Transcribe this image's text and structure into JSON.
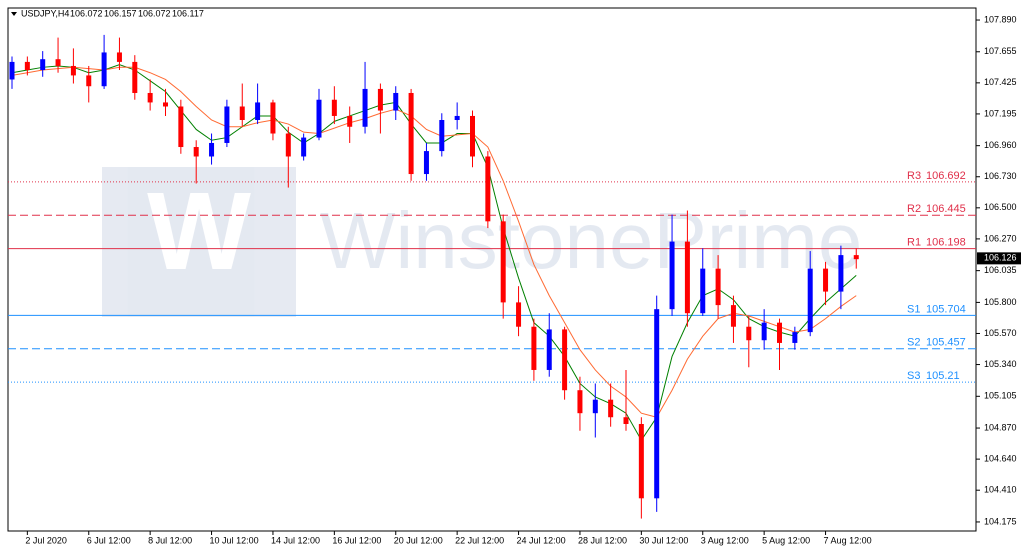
{
  "chart_data": {
    "type": "candlestick",
    "symbol": "USDJPY,H4",
    "header_prices": [
      106.072,
      106.157,
      106.072,
      106.117
    ],
    "watermark": "WinstonePrime",
    "up_color": "#0000ff",
    "down_color": "#ff0000",
    "categories": [
      null,
      "2 Jul 2020",
      null,
      null,
      null,
      "6 Jul 12:00",
      null,
      null,
      null,
      "8 Jul 12:00",
      null,
      null,
      null,
      "10 Jul 12:00",
      null,
      null,
      null,
      "14 Jul 12:00",
      null,
      null,
      null,
      "16 Jul 12:00",
      null,
      null,
      null,
      "20 Jul 12:00",
      null,
      null,
      null,
      "22 Jul 12:00",
      null,
      null,
      null,
      "24 Jul 12:00",
      null,
      null,
      null,
      "28 Jul 12:00",
      null,
      null,
      null,
      "30 Jul 12:00",
      null,
      null,
      null,
      "3 Aug 12:00",
      null,
      null,
      null,
      "5 Aug 12:00",
      null,
      null,
      null,
      "7 Aug 12:00",
      null,
      null
    ],
    "open": [
      107.45,
      107.58,
      107.52,
      107.6,
      107.55,
      107.48,
      107.4,
      107.65,
      107.58,
      107.35,
      107.28,
      107.25,
      106.95,
      106.88,
      106.98,
      107.25,
      107.15,
      107.28,
      107.05,
      106.88,
      107.02,
      107.3,
      107.18,
      107.1,
      107.38,
      107.22,
      107.35,
      106.75,
      106.92,
      107.15,
      107.18,
      106.88,
      106.4,
      105.8,
      105.62,
      105.3,
      105.6,
      105.15,
      104.98,
      105.08,
      104.95,
      104.9,
      104.35,
      105.75,
      106.25,
      105.72,
      106.05,
      105.78,
      105.62,
      105.52,
      105.65,
      105.5,
      105.58,
      106.05,
      105.88,
      106.15
    ],
    "high": [
      107.62,
      107.62,
      107.66,
      107.76,
      107.68,
      107.55,
      107.78,
      107.76,
      107.63,
      107.45,
      107.38,
      107.3,
      107.0,
      107.05,
      107.3,
      107.42,
      107.42,
      107.3,
      107.1,
      107.05,
      107.38,
      107.4,
      107.25,
      107.58,
      107.42,
      107.4,
      107.38,
      106.98,
      107.2,
      107.28,
      107.22,
      106.92,
      106.45,
      105.92,
      105.68,
      105.72,
      105.62,
      105.25,
      105.2,
      105.2,
      105.3,
      104.95,
      105.85,
      106.45,
      106.48,
      106.2,
      106.15,
      105.85,
      105.7,
      105.75,
      105.68,
      105.62,
      106.18,
      106.1,
      106.22,
      106.2
    ],
    "low": [
      107.38,
      107.48,
      107.47,
      107.5,
      107.42,
      107.28,
      107.38,
      107.52,
      107.3,
      107.22,
      107.18,
      106.9,
      106.68,
      106.82,
      106.95,
      107.1,
      107.12,
      107.0,
      106.65,
      106.85,
      107.0,
      107.12,
      106.98,
      107.05,
      107.05,
      107.15,
      106.7,
      106.7,
      106.88,
      107.08,
      106.8,
      106.35,
      105.68,
      105.55,
      105.22,
      105.25,
      105.08,
      104.85,
      104.8,
      104.88,
      104.85,
      104.2,
      104.25,
      105.7,
      105.62,
      105.7,
      105.68,
      105.5,
      105.32,
      105.45,
      105.3,
      105.45,
      105.55,
      105.78,
      105.75,
      106.05
    ],
    "close": [
      107.58,
      107.52,
      107.6,
      107.55,
      107.48,
      107.4,
      107.65,
      107.58,
      107.35,
      107.28,
      107.25,
      106.95,
      106.88,
      106.98,
      107.25,
      107.15,
      107.28,
      107.05,
      106.88,
      107.02,
      107.3,
      107.18,
      107.1,
      107.38,
      107.22,
      107.35,
      106.75,
      106.92,
      107.15,
      107.18,
      106.88,
      106.4,
      105.8,
      105.62,
      105.3,
      105.6,
      105.15,
      104.98,
      105.08,
      104.95,
      104.9,
      104.35,
      105.75,
      106.25,
      105.72,
      106.05,
      105.78,
      105.62,
      105.52,
      105.65,
      105.5,
      105.58,
      106.05,
      105.88,
      106.15,
      106.12
    ],
    "series": [
      {
        "color": "#008000",
        "values": [
          107.5,
          107.52,
          107.54,
          107.55,
          107.54,
          107.5,
          107.52,
          107.56,
          107.52,
          107.44,
          107.36,
          107.22,
          107.08,
          107.0,
          107.02,
          107.1,
          107.18,
          107.18,
          107.06,
          106.98,
          107.05,
          107.14,
          107.18,
          107.22,
          107.26,
          107.28,
          107.12,
          106.98,
          106.98,
          107.05,
          107.05,
          106.8,
          106.35,
          105.98,
          105.65,
          105.55,
          105.4,
          105.2,
          105.1,
          105.05,
          104.98,
          104.78,
          104.95,
          105.4,
          105.65,
          105.85,
          105.9,
          105.82,
          105.68,
          105.62,
          105.58,
          105.55,
          105.68,
          105.8,
          105.9,
          106.0
        ]
      },
      {
        "color": "#ff6a33",
        "values": [
          107.48,
          107.5,
          107.52,
          107.53,
          107.54,
          107.53,
          107.52,
          107.54,
          107.54,
          107.5,
          107.45,
          107.36,
          107.25,
          107.15,
          107.1,
          107.1,
          107.13,
          107.15,
          107.12,
          107.06,
          107.05,
          107.09,
          107.13,
          107.16,
          107.2,
          107.23,
          107.18,
          107.08,
          107.03,
          107.04,
          107.05,
          106.95,
          106.7,
          106.4,
          106.08,
          105.85,
          105.65,
          105.45,
          105.3,
          105.18,
          105.1,
          104.98,
          104.95,
          105.15,
          105.38,
          105.55,
          105.68,
          105.72,
          105.7,
          105.66,
          105.62,
          105.58,
          105.6,
          105.68,
          105.77,
          105.85
        ]
      }
    ],
    "levels": [
      {
        "name": "R3",
        "value": 106.692,
        "color": "#e0304a",
        "style": "dotted"
      },
      {
        "name": "R2",
        "value": 106.445,
        "color": "#e0304a",
        "style": "dashed"
      },
      {
        "name": "R1",
        "value": 106.198,
        "color": "#e0304a",
        "style": "solid"
      },
      {
        "name": "S1",
        "value": 105.704,
        "color": "#1e90ff",
        "style": "solid"
      },
      {
        "name": "S2",
        "value": 105.457,
        "color": "#1e90ff",
        "style": "dashed"
      },
      {
        "name": "S3",
        "value": 105.21,
        "color": "#1e90ff",
        "style": "dotted"
      }
    ],
    "current_price": 106.126,
    "ylim": [
      104.108,
      107.979
    ],
    "yticks": [
      {
        "value": 107.89,
        "label": "107.890"
      },
      {
        "value": 107.655,
        "label": "107.655"
      },
      {
        "value": 107.425,
        "label": "107.425"
      },
      {
        "value": 107.195,
        "label": "107.195"
      },
      {
        "value": 106.96,
        "label": "106.960"
      },
      {
        "value": 106.73,
        "label": "106.730"
      },
      {
        "value": 106.5,
        "label": "106.500"
      },
      {
        "value": 106.27,
        "label": "106.270"
      },
      {
        "value": 106.035,
        "label": "106.035"
      },
      {
        "value": 105.8,
        "label": "105.800"
      },
      {
        "value": 105.57,
        "label": "105.570"
      },
      {
        "value": 105.34,
        "label": "105.340"
      },
      {
        "value": 105.105,
        "label": "105.105"
      },
      {
        "value": 104.87,
        "label": "104.870"
      },
      {
        "value": 104.64,
        "label": "104.640"
      },
      {
        "value": 104.41,
        "label": "104.410"
      },
      {
        "value": 104.175,
        "label": "104.175"
      }
    ]
  }
}
